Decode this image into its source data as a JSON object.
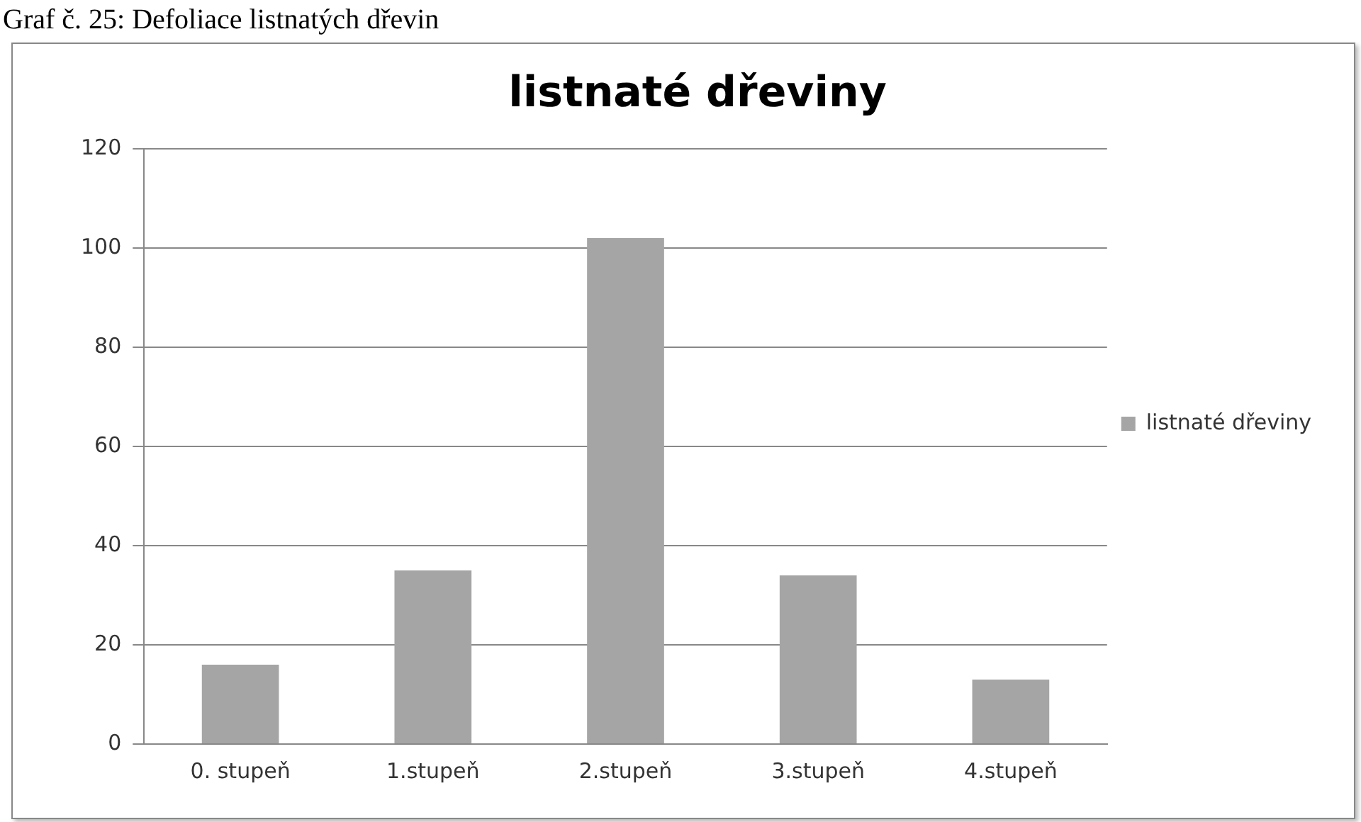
{
  "chart_data": {
    "type": "bar",
    "title": "listnaté dřeviny",
    "annotations": [
      "Graf č. 25: Defoliace listnatých dřevin"
    ],
    "categories": [
      "0. stupeň",
      "1.stupeň",
      "2.stupeň",
      "3.stupeň",
      "4.stupeň"
    ],
    "series": [
      {
        "name": "listnaté dřeviny",
        "color": "#a5a5a5",
        "values": [
          16,
          35,
          102,
          34,
          13
        ]
      }
    ],
    "ylim": [
      0,
      120
    ],
    "yticks": [
      0,
      20,
      40,
      60,
      80,
      100,
      120
    ],
    "grid": "y",
    "legend": "right"
  }
}
